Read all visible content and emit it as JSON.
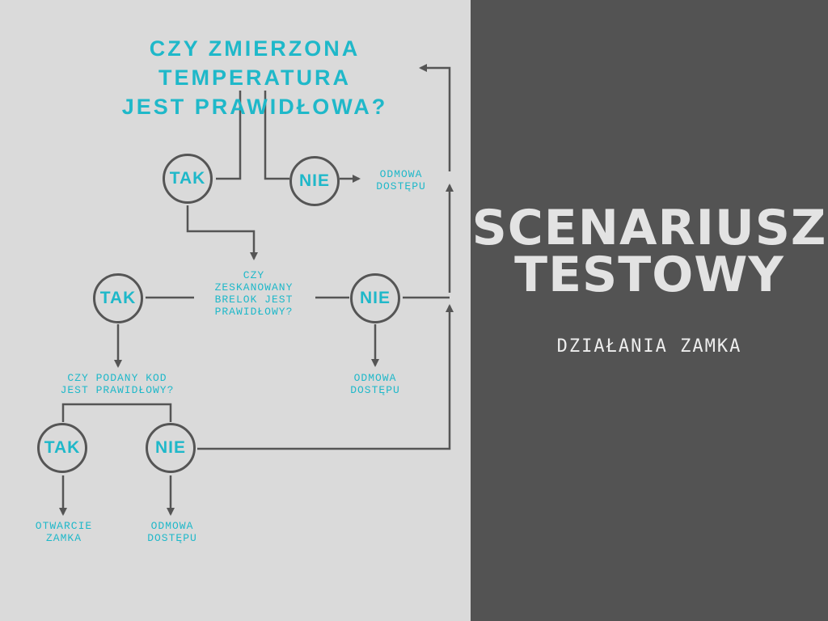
{
  "flowchart": {
    "question_temperature": "CZY ZMIERZONA TEMPERATURA\nJEST PRAWIDŁOWA?",
    "question_fob": "CZY\nZESKANOWANY\nBRELOK JEST\nPRAWIDŁOWY?",
    "question_code": "CZY PODANY KOD\nJEST PRAWIDŁOWY?",
    "yes_label": "TAK",
    "no_label": "NIE",
    "access_denied": "ODMOWA\nDOSTĘPU",
    "lock_open": "OTWARCIE\nZAMKA"
  },
  "header": {
    "title_line1": "SCENARIUSZ",
    "title_line2": "TESTOWY",
    "subtitle": "DZIAŁANIA ZAMKA"
  },
  "colors": {
    "accent": "#1fb8c9",
    "line": "#555555",
    "left_background": "#dadada",
    "right_background": "#535353"
  }
}
